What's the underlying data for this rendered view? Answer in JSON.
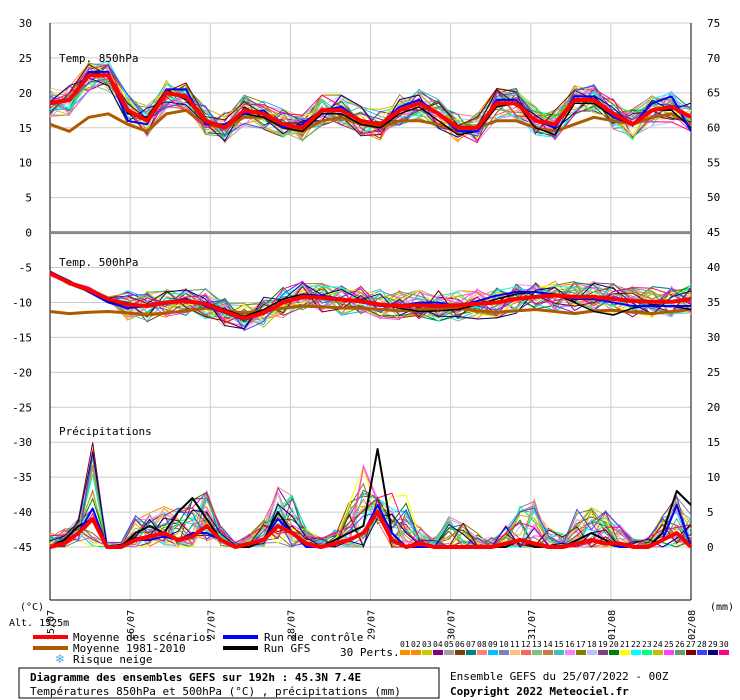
{
  "chart_data": {
    "type": "line",
    "title": "Diagramme des ensembles GEFS sur 192h : 45.3N 7.4E",
    "subtitle": "Températures 850hPa et 500hPa (°C) , précipitations (mm)",
    "run_info": "Ensemble GEFS du 25/07/2022 - 00Z",
    "copyright": "Copyright 2022 Meteociel.fr",
    "altitude": "Alt. 1525m",
    "left_axis_unit": "(°C)",
    "right_axis_unit": "(mm)",
    "left_axis": {
      "range": [
        -45,
        30
      ],
      "ticks": [
        "30",
        "25",
        "20",
        "15",
        "10",
        "5",
        "0",
        "-5",
        "-10",
        "-15",
        "-20",
        "-25",
        "-30",
        "-35",
        "-40",
        "-45"
      ]
    },
    "right_axis_top": {
      "range": [
        45,
        75
      ],
      "ticks": [
        "75",
        "70",
        "65",
        "60",
        "55",
        "50",
        "45"
      ]
    },
    "right_axis_bottom": {
      "range": [
        0,
        40
      ],
      "ticks": [
        "40",
        "35",
        "30",
        "25",
        "20",
        "15",
        "10",
        "5",
        "0"
      ]
    },
    "x_labels": [
      "25/07",
      "26/07",
      "27/07",
      "28/07",
      "29/07",
      "30/07",
      "31/07",
      "01/08",
      "02/08"
    ],
    "panels": [
      "Temp. 850hPa",
      "Temp. 500hPa",
      "Précipitations"
    ],
    "legend": {
      "mean": "Moyenne des scénarios",
      "climo": "Moyenne 1981-2010",
      "snow": "Risque neige",
      "control": "Run de contrôle",
      "gfs": "Run GFS",
      "perts": "30 Perts."
    },
    "colors": {
      "mean": "#ff0000",
      "climo": "#b05a00",
      "control": "#0000ff",
      "gfs": "#000000",
      "snow": "#4fa8e0"
    },
    "member_labels": [
      "01",
      "02",
      "03",
      "04",
      "05",
      "06",
      "07",
      "08",
      "09",
      "10",
      "11",
      "12",
      "13",
      "14",
      "15",
      "16",
      "17",
      "18",
      "19",
      "20",
      "21",
      "22",
      "23",
      "24",
      "25",
      "26",
      "27",
      "28",
      "29",
      "30"
    ],
    "member_colors": [
      "#ff8c00",
      "#ff8c00",
      "#c8c800",
      "#800080",
      "#a0a0a0",
      "#804000",
      "#008080",
      "#ff8080",
      "#00c0ff",
      "#8080c0",
      "#ffc080",
      "#ff6060",
      "#80c080",
      "#c08040",
      "#40c0c0",
      "#ff80ff",
      "#808000",
      "#c0c0ff",
      "#804080",
      "#008000",
      "#ffff00",
      "#00ffff",
      "#00ff80",
      "#c0c000",
      "#ff40ff",
      "#60a060",
      "#800000",
      "#4040ff",
      "#000080",
      "#ff0080"
    ],
    "t850_mean": [
      18.5,
      19,
      22.5,
      22.5,
      17.5,
      16,
      20,
      19.5,
      16,
      15,
      17.5,
      17,
      15.5,
      15,
      17.5,
      17.5,
      16,
      15.5,
      17.5,
      18.5,
      17,
      15,
      15,
      18.5,
      18.5,
      16,
      15.5,
      19,
      19,
      17,
      15.5,
      17.5,
      18,
      16.5
    ],
    "t850_climo": [
      15.5,
      14.5,
      16.5,
      17,
      15.5,
      14.5,
      17,
      17.5,
      15.5,
      15,
      16.5,
      16.5,
      15,
      14.5,
      16,
      16.5,
      15.5,
      15,
      16,
      16,
      15.5,
      14.5,
      15,
      16,
      16,
      15,
      14.5,
      15.5,
      16.5,
      16,
      15.5,
      16.5,
      17,
      15.5
    ],
    "t850_control": [
      18.5,
      19,
      23,
      23,
      16,
      15.5,
      20.5,
      20.5,
      15.5,
      15.5,
      17,
      17.5,
      15,
      15.5,
      17.5,
      18,
      16,
      15.5,
      18,
      19,
      17,
      14.5,
      14.5,
      19,
      19,
      16,
      15,
      19.5,
      19.5,
      16.5,
      15.5,
      18.5,
      19.5,
      14.5
    ],
    "t850_gfs": [
      18.5,
      19,
      23,
      22.5,
      17,
      16.5,
      20.5,
      19,
      16,
      15,
      17,
      16.5,
      15,
      14.5,
      17,
      17,
      15.5,
      15,
      17,
      18,
      16,
      14,
      14.5,
      18,
      18.5,
      15,
      14,
      18.5,
      18.5,
      16.5,
      15.5,
      17.5,
      17.5,
      15
    ],
    "t500_mean": [
      -5.8,
      -7.2,
      -8.2,
      -9.5,
      -10.3,
      -10.5,
      -10,
      -9.8,
      -10.2,
      -11.3,
      -12.3,
      -11.5,
      -10,
      -9.2,
      -9.3,
      -9.6,
      -9.8,
      -10.3,
      -10.5,
      -10.4,
      -10.5,
      -10.4,
      -10.2,
      -10,
      -9.5,
      -9.2,
      -9,
      -9.2,
      -9.2,
      -9.5,
      -9.8,
      -9.9,
      -9.9,
      -9.5
    ],
    "t500_climo": [
      -11.3,
      -11.6,
      -11.4,
      -11.3,
      -11.5,
      -11.8,
      -11.5,
      -11.2,
      -10.8,
      -11.2,
      -11.5,
      -11.2,
      -10.8,
      -10.5,
      -10.6,
      -10.8,
      -10.8,
      -11,
      -11.2,
      -11,
      -10.8,
      -10.8,
      -11.2,
      -11.4,
      -11.2,
      -11,
      -11.3,
      -11.6,
      -11.2,
      -11.1,
      -11.4,
      -11.6,
      -11.3,
      -11
    ],
    "t500_control": [
      -5.6,
      -7,
      -8.5,
      -10,
      -10.8,
      -10.5,
      -10,
      -9.5,
      -10.5,
      -11.5,
      -12.5,
      -11.5,
      -10,
      -9,
      -9,
      -9.5,
      -10,
      -10.5,
      -10.5,
      -10,
      -10,
      -10.5,
      -9.8,
      -9,
      -8.5,
      -8.5,
      -9,
      -9.5,
      -9.5,
      -10,
      -10.5,
      -10.5,
      -10.5,
      -10.5
    ],
    "t500_gfs": [
      -5.6,
      -7,
      -8.4,
      -9.8,
      -10.5,
      -10.3,
      -9.8,
      -9.7,
      -10,
      -11,
      -12,
      -11,
      -9.5,
      -8.8,
      -9,
      -9.5,
      -9.8,
      -10.3,
      -10.8,
      -11.3,
      -11.2,
      -11,
      -10.3,
      -9.5,
      -8.8,
      -8.5,
      -8.8,
      -10,
      -11.3,
      -11.8,
      -10.8,
      -10.3,
      -10.5,
      -11
    ],
    "precip_mean": [
      0,
      0.5,
      2,
      4,
      0,
      0,
      1,
      1.5,
      2,
      1,
      1.5,
      3,
      1,
      0,
      0.5,
      1,
      3,
      2,
      0.5,
      0,
      0.5,
      1,
      2,
      5,
      1,
      0,
      0.5,
      0,
      0,
      0,
      0,
      0,
      0.5,
      1,
      0.5,
      0,
      0,
      0.5,
      1,
      0.5,
      0.5,
      0,
      0,
      1,
      2,
      0
    ],
    "precip_control": [
      0,
      0.5,
      2,
      5.5,
      0,
      0,
      1,
      1,
      1.5,
      1,
      2,
      2,
      1,
      0,
      0.5,
      1,
      4,
      2,
      0,
      0,
      0.5,
      1,
      2,
      6,
      2,
      0,
      0,
      0,
      0,
      0,
      0,
      0,
      0.5,
      1,
      0.5,
      0,
      0,
      0.5,
      1,
      0.5,
      0,
      0,
      0,
      1,
      6,
      0
    ],
    "precip_gfs": [
      0,
      1,
      3,
      4,
      0,
      0,
      2,
      3,
      2,
      5,
      7,
      4,
      1,
      0,
      0,
      1,
      5,
      2,
      0,
      0,
      1,
      2,
      3,
      14,
      2,
      0,
      0,
      0,
      0,
      0,
      0,
      0,
      0,
      1,
      0,
      0,
      0,
      1,
      2,
      1,
      0,
      0,
      0,
      2,
      8,
      6
    ],
    "precip_max": [
      3,
      3,
      4,
      16,
      1,
      1,
      5,
      5,
      6,
      7,
      8,
      8,
      3,
      1,
      2,
      4,
      9,
      8,
      3,
      2,
      3,
      8,
      14,
      7,
      10,
      11,
      4,
      2,
      8,
      5,
      3,
      2,
      4,
      8,
      9,
      4,
      3,
      7,
      7,
      7,
      4,
      2,
      2,
      5,
      8,
      7
    ]
  }
}
